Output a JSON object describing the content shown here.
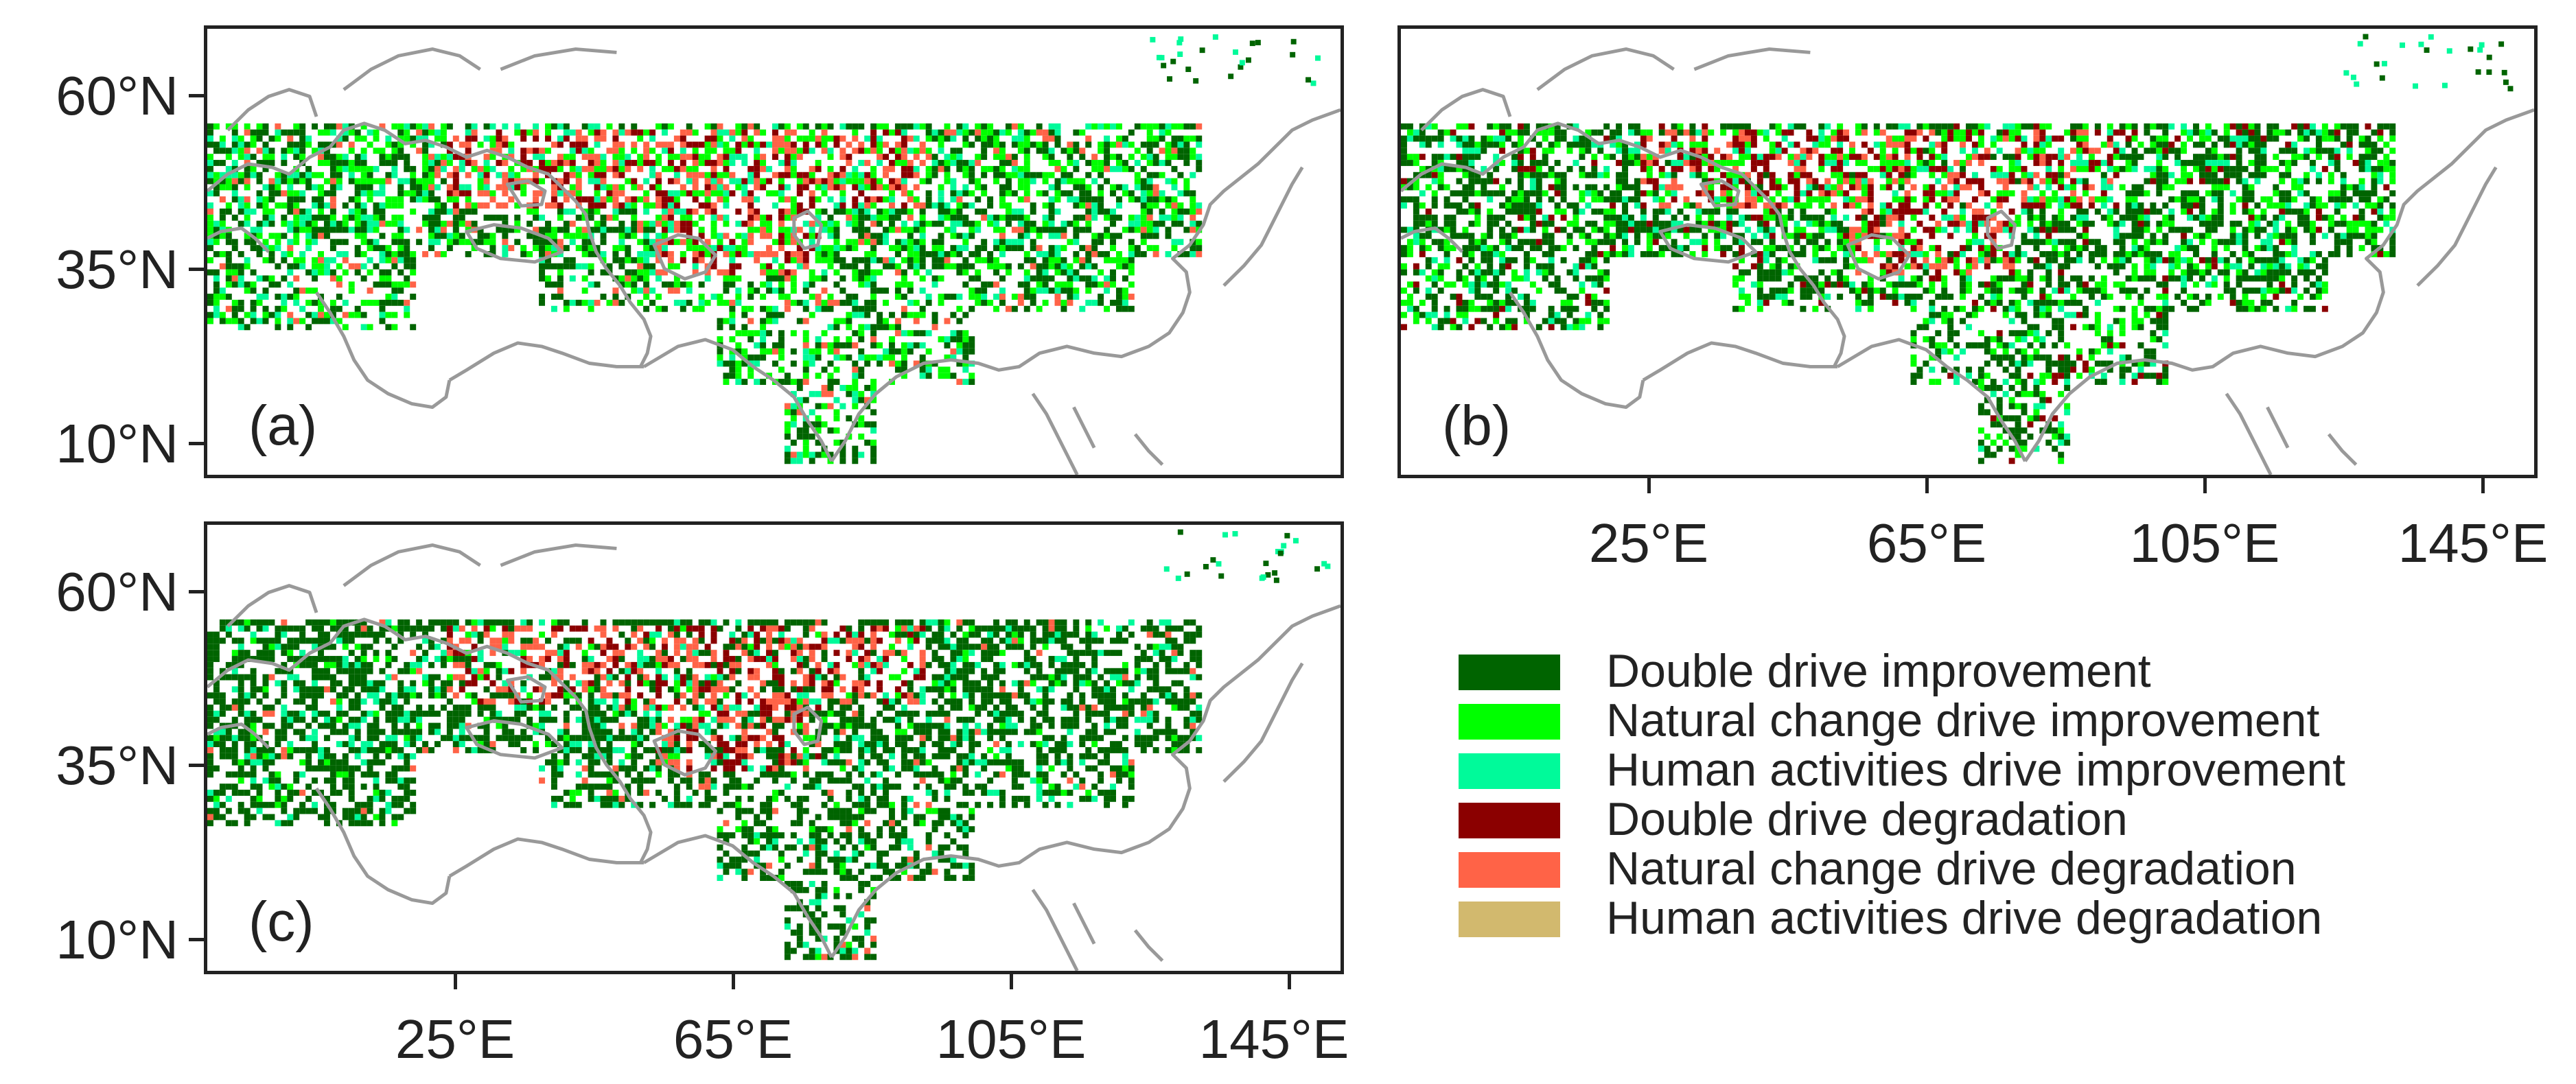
{
  "figure": {
    "panels": [
      {
        "id": "a",
        "label": "(a)"
      },
      {
        "id": "b",
        "label": "(b)"
      },
      {
        "id": "c",
        "label": "(c)"
      }
    ],
    "y_ticks": [
      "60°N",
      "35°N",
      "10°N"
    ],
    "x_ticks": [
      "25°E",
      "65°E",
      "105°E",
      "145°E"
    ],
    "coastline_color": "#999999"
  },
  "legend": {
    "items": [
      {
        "label": "Double drive improvement",
        "color": "#006400"
      },
      {
        "label": "Natural change drive improvement",
        "color": "#00ff00"
      },
      {
        "label": "Human activities drive improvement",
        "color": "#00fa9a"
      },
      {
        "label": "Double drive degradation",
        "color": "#8b0000"
      },
      {
        "label": "Natural change drive degradation",
        "color": "#ff6347"
      },
      {
        "label": "Human activities drive degradation",
        "color": "#d2b96e"
      }
    ]
  }
}
